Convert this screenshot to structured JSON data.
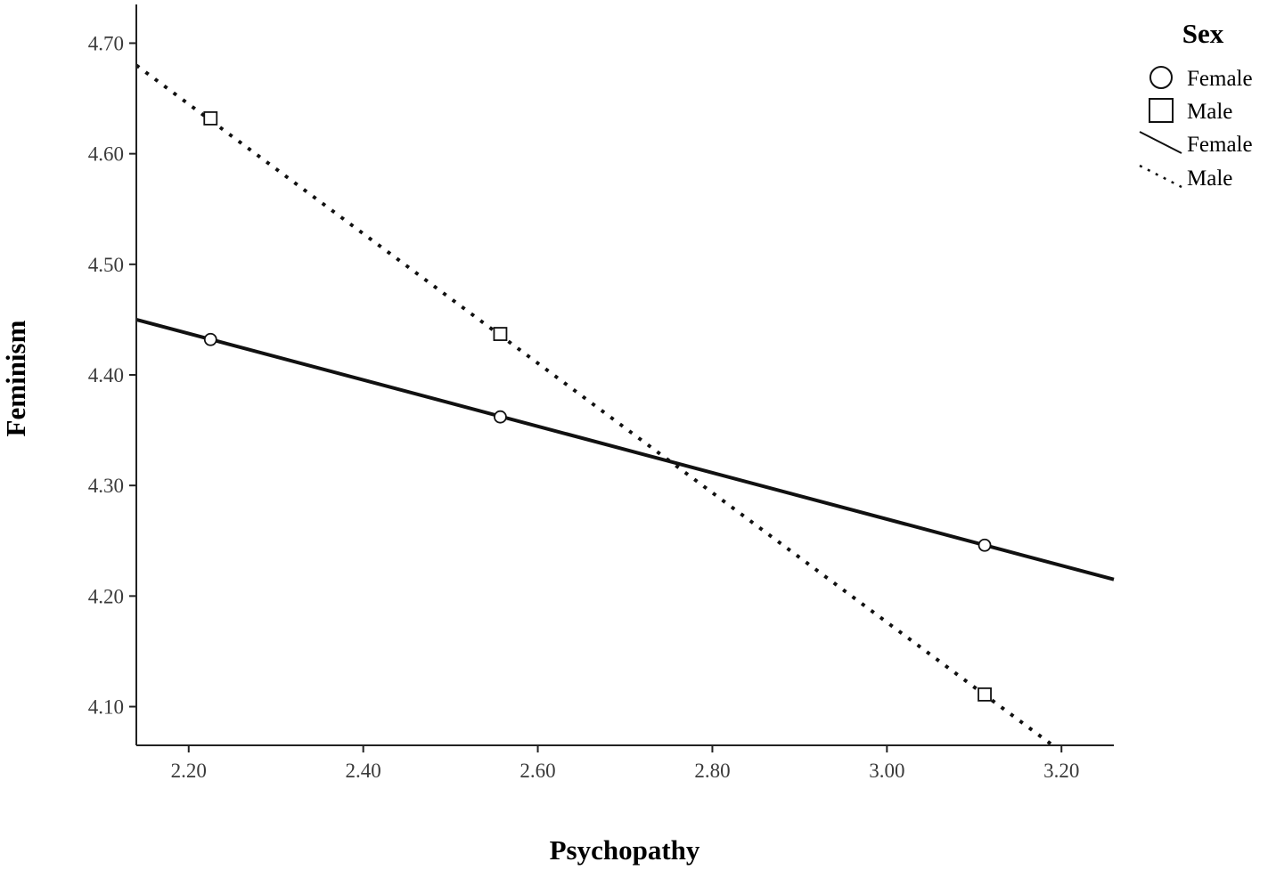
{
  "chart_data": {
    "type": "line",
    "xlabel": "Psychopathy",
    "ylabel": "Feminism",
    "xlim": [
      2.14,
      3.26
    ],
    "ylim": [
      4.065,
      4.735
    ],
    "x_ticks": [
      "2.20",
      "2.40",
      "2.60",
      "2.80",
      "3.00",
      "3.20"
    ],
    "y_ticks": [
      "4.10",
      "4.20",
      "4.30",
      "4.40",
      "4.50",
      "4.60",
      "4.70"
    ],
    "grid": false,
    "legend": {
      "title": "Sex",
      "position": "top-right",
      "entries": [
        {
          "label": "Female",
          "symbol": "circle"
        },
        {
          "label": "Male",
          "symbol": "square"
        },
        {
          "label": "Female",
          "symbol": "solid-line"
        },
        {
          "label": "Male",
          "symbol": "dotted-line"
        }
      ]
    },
    "series": [
      {
        "name": "Female",
        "marker": "circle",
        "line_style": "solid",
        "points": [
          {
            "x": 2.225,
            "y": 4.432
          },
          {
            "x": 2.557,
            "y": 4.362
          },
          {
            "x": 3.112,
            "y": 4.246
          }
        ],
        "fit_line": [
          [
            2.14,
            4.45
          ],
          [
            3.26,
            4.215
          ]
        ]
      },
      {
        "name": "Male",
        "marker": "square",
        "line_style": "dotted",
        "points": [
          {
            "x": 2.225,
            "y": 4.632
          },
          {
            "x": 2.557,
            "y": 4.437
          },
          {
            "x": 3.112,
            "y": 4.111
          }
        ],
        "fit_line": [
          [
            2.14,
            4.68
          ],
          [
            3.19,
            4.065
          ]
        ]
      }
    ]
  }
}
